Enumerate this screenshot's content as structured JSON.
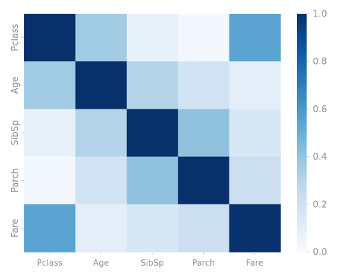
{
  "chart_data": {
    "type": "heatmap",
    "title": "",
    "xlabel": "",
    "ylabel": "",
    "x_categories": [
      "Pclass",
      "Age",
      "SibSp",
      "Parch",
      "Fare"
    ],
    "y_categories": [
      "Pclass",
      "Age",
      "SibSp",
      "Parch",
      "Fare"
    ],
    "values": [
      [
        1.0,
        0.37,
        0.08,
        0.02,
        0.55
      ],
      [
        0.37,
        1.0,
        0.31,
        0.19,
        0.1
      ],
      [
        0.08,
        0.31,
        1.0,
        0.41,
        0.16
      ],
      [
        0.02,
        0.19,
        0.41,
        1.0,
        0.22
      ],
      [
        0.55,
        0.1,
        0.16,
        0.22,
        1.0
      ]
    ],
    "colormap": "Blues",
    "vmin": 0.0,
    "vmax": 1.0,
    "colorbar": {
      "ticks": [
        0.0,
        0.2,
        0.4,
        0.6,
        0.8,
        1.0
      ],
      "tick_labels": [
        "0.0",
        "0.2",
        "0.4",
        "0.6",
        "0.8",
        "1.0"
      ],
      "placement": "right"
    },
    "grid": false
  },
  "colors": {
    "tick_text": "#8c8c8c",
    "tick_line": "#cccccc"
  }
}
